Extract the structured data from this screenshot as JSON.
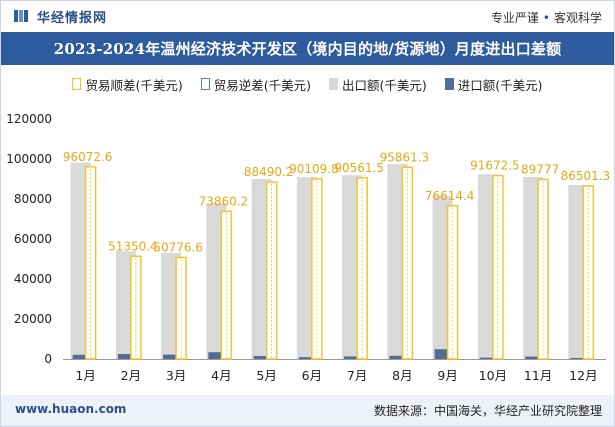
{
  "header": {
    "brand": "华经情报网",
    "tagline_left": "专业严谨",
    "tagline_right": "客观科学"
  },
  "title": "2023-2024年温州经济技术开发区（境内目的地/货源地）月度进出口差额",
  "legend": {
    "shun": "贸易顺差(千美元)",
    "ni": "贸易逆差(千美元)",
    "export": "出口额(千美元)",
    "import": "进口额(千美元)"
  },
  "footer": {
    "site": "www.huaon.com",
    "source": "数据来源：中国海关，华经产业研究院整理"
  },
  "colors": {
    "title_bg": "#2e5a9e",
    "export": "#d9d9d9",
    "import": "#536d94",
    "surplus_border": "#f4c430",
    "deficit_border": "#5a7fb8"
  },
  "chart_data": {
    "type": "bar",
    "categories": [
      "1月",
      "2月",
      "3月",
      "4月",
      "5月",
      "6月",
      "7月",
      "8月",
      "9月",
      "10月",
      "11月",
      "12月"
    ],
    "series": [
      {
        "name": "出口额(千美元)",
        "values": [
          98200,
          53900,
          53000,
          77800,
          90000,
          91000,
          91900,
          97500,
          81500,
          92300,
          91000,
          87000
        ]
      },
      {
        "name": "进口额(千美元)",
        "values": [
          2100,
          2500,
          2200,
          3400,
          1500,
          900,
          1300,
          1600,
          4900,
          700,
          1200,
          500
        ]
      },
      {
        "name": "贸易顺差(千美元)",
        "values": [
          96072.6,
          51350.4,
          50776.6,
          73860.2,
          88490.2,
          90109.8,
          90561.5,
          95861.3,
          76614.4,
          91672.5,
          89777,
          86501.3
        ]
      },
      {
        "name": "贸易逆差(千美元)",
        "values": [
          0,
          0,
          0,
          0,
          0,
          0,
          0,
          0,
          0,
          0,
          0,
          0
        ]
      }
    ],
    "data_labels": [
      "96072.6",
      "51350.4",
      "50776.6",
      "73860.2",
      "88490.2",
      "90109.8",
      "90561.5",
      "95861.3",
      "76614.4",
      "91672.5",
      "89777",
      "86501.3"
    ],
    "yticks": [
      "0",
      "20000",
      "40000",
      "60000",
      "80000",
      "100000",
      "120000"
    ],
    "ylim": [
      0,
      120000
    ],
    "grid": false,
    "legend_position": "top"
  }
}
